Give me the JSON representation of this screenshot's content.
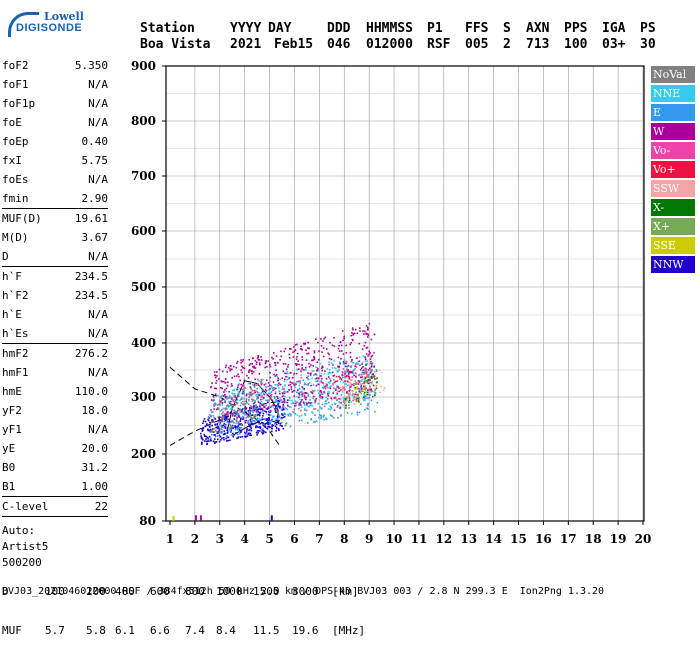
{
  "logo": {
    "line1": "Lowell",
    "line2": "DIGISONDE"
  },
  "header": {
    "row1": [
      "Station",
      "YYYY",
      "DAY",
      "DDD",
      "HHMMSS",
      "P1",
      "FFS",
      "S",
      "AXN",
      "PPS",
      "IGA",
      "PS"
    ],
    "row2": [
      "Boa Vista",
      "2021",
      "Feb15",
      "046",
      "012000",
      "RSF",
      "005",
      "2",
      "713",
      "100",
      "03+",
      "30"
    ]
  },
  "params": {
    "group1": [
      {
        "label": "foF2",
        "value": "5.350"
      },
      {
        "label": "foF1",
        "value": "N/A"
      },
      {
        "label": "foF1p",
        "value": "N/A"
      },
      {
        "label": "foE",
        "value": "N/A"
      },
      {
        "label": "foEp",
        "value": "0.40"
      },
      {
        "label": "fxI",
        "value": "5.75"
      },
      {
        "label": "foEs",
        "value": "N/A"
      },
      {
        "label": "fmin",
        "value": "2.90"
      }
    ],
    "group2": [
      {
        "label": "MUF(D)",
        "value": "19.61"
      },
      {
        "label": "M(D)",
        "value": "3.67"
      },
      {
        "label": "D",
        "value": "N/A"
      }
    ],
    "group3": [
      {
        "label": "h`F",
        "value": "234.5"
      },
      {
        "label": "h`F2",
        "value": "234.5"
      },
      {
        "label": "h`E",
        "value": "N/A"
      },
      {
        "label": "h`Es",
        "value": "N/A"
      }
    ],
    "group4": [
      {
        "label": "hmF2",
        "value": "276.2"
      },
      {
        "label": "hmF1",
        "value": "N/A"
      },
      {
        "label": "hmE",
        "value": "110.0"
      },
      {
        "label": "yF2",
        "value": "18.0"
      },
      {
        "label": "yF1",
        "value": "N/A"
      },
      {
        "label": "yE",
        "value": "20.0"
      },
      {
        "label": "B0",
        "value": "31.2"
      },
      {
        "label": "B1",
        "value": "1.00"
      }
    ],
    "clevel": {
      "label": "C-level",
      "value": "22"
    },
    "auto": [
      "Auto:",
      "Artist5",
      "500200"
    ]
  },
  "legend": [
    {
      "label": "NoVal",
      "color": "#808080"
    },
    {
      "label": "NNE",
      "color": "#33ccee"
    },
    {
      "label": "E",
      "color": "#3399ee"
    },
    {
      "label": "W",
      "color": "#aa0099"
    },
    {
      "label": "Vo-",
      "color": "#ee44aa"
    },
    {
      "label": "Vo+",
      "color": "#ee1144"
    },
    {
      "label": "SSW",
      "color": "#f4a6a6"
    },
    {
      "label": "X-",
      "color": "#007700"
    },
    {
      "label": "X+",
      "color": "#77aa55"
    },
    {
      "label": "SSE",
      "color": "#cccc00"
    },
    {
      "label": "NNW",
      "color": "#2200cc"
    }
  ],
  "footer": {
    "d_row_label": "D",
    "d_values": [
      "100",
      "200",
      "400",
      "600",
      "800",
      "1000",
      "1500",
      "3000",
      "[km]"
    ],
    "muf_row_label": "MUF",
    "muf_values": [
      "5.7",
      "5.8",
      "6.1",
      "6.6",
      "7.4",
      "8.4",
      "11.5",
      "19.6",
      "[MHz]"
    ],
    "info": "BVJ03_2021046012000.RSF / 384fx512h 50 kHz 2.5 km / DPS-4D BVJ03 003 / 2.8 N 299.3 E  Ion2Png 1.3.20"
  },
  "chart_data": {
    "type": "scatter",
    "title": "",
    "xlabel": "",
    "ylabel": "",
    "xlim": [
      1,
      20
    ],
    "ylim": [
      80,
      900
    ],
    "x_ticks": [
      1,
      2,
      3,
      4,
      5,
      6,
      7,
      8,
      9,
      10,
      11,
      12,
      13,
      14,
      15,
      16,
      17,
      18,
      19,
      20
    ],
    "y_ticks": [
      80,
      200,
      300,
      400,
      500,
      600,
      700,
      800,
      900
    ],
    "grid": true,
    "legend_position": "right",
    "clusters": [
      {
        "series": "NNW",
        "color": "#2200cc",
        "x_range": [
          2.2,
          5.6
        ],
        "y_range": [
          215,
          300
        ],
        "count": 420
      },
      {
        "series": "E",
        "color": "#3399ee",
        "x_range": [
          2.5,
          9.3
        ],
        "y_range": [
          225,
          370
        ],
        "count": 380
      },
      {
        "series": "NNE",
        "color": "#33ccee",
        "x_range": [
          3.0,
          9.0
        ],
        "y_range": [
          240,
          385
        ],
        "count": 360
      },
      {
        "series": "W",
        "color": "#aa0099",
        "x_range": [
          2.6,
          9.2
        ],
        "y_range": [
          250,
          440
        ],
        "count": 560
      },
      {
        "series": "Vo-",
        "color": "#ee44aa",
        "x_range": [
          3.2,
          9.0
        ],
        "y_range": [
          250,
          380
        ],
        "count": 120
      },
      {
        "series": "Vo+",
        "color": "#ee1144",
        "x_range": [
          7.5,
          9.2
        ],
        "y_range": [
          270,
          390
        ],
        "count": 60
      },
      {
        "series": "SSW",
        "color": "#f4a6a6",
        "x_range": [
          7.8,
          9.6
        ],
        "y_range": [
          280,
          360
        ],
        "count": 50
      },
      {
        "series": "X-",
        "color": "#007700",
        "x_range": [
          8.0,
          9.3
        ],
        "y_range": [
          280,
          350
        ],
        "count": 30
      },
      {
        "series": "X+",
        "color": "#77aa55",
        "x_range": [
          8.0,
          9.3
        ],
        "y_range": [
          290,
          360
        ],
        "count": 25
      },
      {
        "series": "SSE",
        "color": "#cccc00",
        "x_range": [
          8.3,
          9.3
        ],
        "y_range": [
          290,
          350
        ],
        "count": 15
      },
      {
        "series": "NoVal",
        "color": "#808080",
        "x_range": [
          2.6,
          4.5
        ],
        "y_range": [
          230,
          330
        ],
        "count": 100
      }
    ],
    "low_markers": [
      {
        "x": 1.1,
        "y": 82,
        "color": "#cccc00"
      },
      {
        "x": 2.0,
        "y": 83,
        "color": "#aa0099"
      },
      {
        "x": 2.2,
        "y": 83,
        "color": "#aa0099"
      },
      {
        "x": 5.05,
        "y": 83,
        "color": "#2200cc"
      }
    ],
    "trace_upper": {
      "x": [
        1,
        2.0,
        3.0,
        4.5,
        5.0,
        5.4
      ],
      "y": [
        355,
        315,
        300,
        260,
        240,
        215
      ]
    },
    "trace_lower": {
      "x": [
        1,
        2.0,
        3.0,
        4.0,
        5.0,
        5.4
      ],
      "y": [
        215,
        240,
        260,
        280,
        290,
        292
      ]
    },
    "profile": {
      "x": [
        3.3,
        3.5,
        4.0,
        4.5,
        5.0,
        5.35,
        5.3,
        4.8,
        4.2,
        3.8,
        3.5
      ],
      "y": [
        240,
        280,
        330,
        325,
        300,
        276,
        255,
        262,
        250,
        240,
        232
      ]
    }
  }
}
